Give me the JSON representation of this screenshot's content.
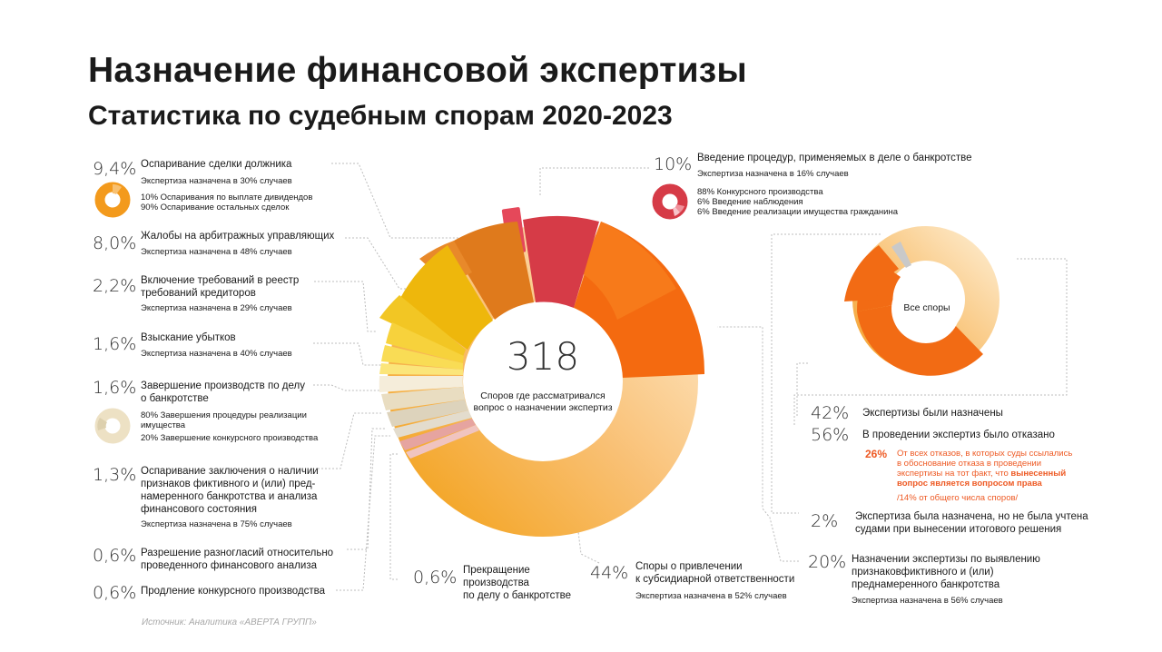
{
  "title": "Назначение финансовой экспертизы",
  "subtitle": "Статистика по судебным спорам 2020-2023",
  "source": "Источник: Аналитика «АВЕРТА ГРУПП»",
  "center": {
    "value": "318",
    "caption": "Споров где рассматривался вопрос о назначении экспертиз"
  },
  "chart_data": [
    {
      "type": "pie",
      "title": "Назначение финансовой экспертизы",
      "total": 318,
      "categories": [
        "Споры о привлечении к субсидиарной ответственности",
        "Назначении экспертизы по выявлению признаков фиктивного и (или) преднамеренного банкротства",
        "Введение процедур, применяемых в деле о банкротстве",
        "Оспаривание сделки должника",
        "Жалобы на арбитражных управляющих",
        "Включение требований в реестр требований кредиторов",
        "Взыскание убытков",
        "Завершение производств по делу о банкротстве",
        "Оспаривание заключения о наличии признаков фиктивного и (или) преднамеренного банкротства и анализа финансового состояния",
        "Разрешение разногласий относительно проведенного финансового анализа",
        "Продление конкурсного производства",
        "Прекращение производства по делу о банкротстве"
      ],
      "values": [
        44,
        20,
        10,
        9.4,
        8.0,
        2.2,
        1.6,
        1.6,
        1.3,
        0.6,
        0.6,
        0.6
      ],
      "appointed_percent": [
        52,
        56,
        16,
        30,
        48,
        29,
        40,
        null,
        75,
        null,
        null,
        null
      ]
    },
    {
      "type": "pie",
      "title": "Все споры",
      "categories": [
        "Экспертизы были назначены",
        "В проведении экспертиз было отказано",
        "Экспертиза была назначена, но не была учтена судами при вынесении итогового решения"
      ],
      "values": [
        42,
        56,
        2
      ]
    },
    {
      "type": "pie",
      "categories": [
        "Оспаривания по выплате дивидендов",
        "Оспаривание остальных сделок"
      ],
      "values": [
        10,
        90
      ]
    },
    {
      "type": "pie",
      "categories": [
        "Конкурсного производства",
        "Введение наблюдения",
        "Введение реализации имущества гражданина"
      ],
      "values": [
        88,
        6,
        6
      ]
    },
    {
      "type": "pie",
      "categories": [
        "Завершения процедуры реализации имущества",
        "Завершение конкурсного производства"
      ],
      "values": [
        80,
        20
      ]
    }
  ],
  "labels": {
    "s1": {
      "pct": "9,4%",
      "name": "Оспаривание сделки должника",
      "note": "Экспертиза назначена в 30% случаев",
      "sub1": "10% Оспаривания по выплате дивидендов",
      "sub2": "90%  Оспаривание остальных сделок"
    },
    "s2": {
      "pct": "8,0%",
      "name": "Жалобы на арбитражных управляющих",
      "note": "Экспертиза назначена в 48% случаев"
    },
    "s3": {
      "pct": "2,2%",
      "name1": "Включение требований в реестр",
      "name2": "требований кредиторов",
      "note": "Экспертиза назначена в 29% случаев"
    },
    "s4": {
      "pct": "1,6%",
      "name": "Взыскание убытков",
      "note": "Экспертиза назначена в 40% случаев"
    },
    "s5": {
      "pct": "1,6%",
      "name1": "Завершение производств по делу",
      "name2": "о банкротстве",
      "sub1": "80% Завершения процедуры реализации",
      "sub2": "имущества",
      "sub3": "20% Завершение конкурсного производства"
    },
    "s6": {
      "pct": "1,3%",
      "name1": "Оспаривание заключения о наличии",
      "name2": "признаков фиктивного и (или) пред-",
      "name3": "намеренного банкротства и анализа",
      "name4": "финансового состояния",
      "note": "Экспертиза назначена в 75% случаев"
    },
    "s7": {
      "pct": "0,6%",
      "name1": "Разрешение разногласий относительно",
      "name2": "проведенного финансового анализа"
    },
    "s8": {
      "pct": "0,6%",
      "name": "Продление конкурсного производства"
    },
    "s9": {
      "pct": "0,6%",
      "name1": "Прекращение",
      "name2": "производства",
      "name3": "по делу о банкротстве"
    },
    "s10": {
      "pct": "44%",
      "name1": "Споры о привлечении",
      "name2": "к субсидиарной ответственности",
      "note": "Экспертиза назначена в 52% случаев"
    },
    "s11": {
      "pct": "20%",
      "name1": "Назначении экспертизы по выявлению",
      "name2": "признаковфиктивного и (или)",
      "name3": "преднамеренного банкротства",
      "note": "Экспертиза назначена в 56% случаев"
    },
    "s12": {
      "pct": "10%",
      "name": "Введение процедур, применяемых в деле о банкротстве",
      "note": "Экспертиза назначена в 16% случаев",
      "sub1": "88% Конкурсного производства",
      "sub2": "6% Введение наблюдения",
      "sub3": "6% Введение реализации имущества гражданина"
    }
  },
  "right": {
    "center": "Все споры",
    "r1": {
      "pct": "42%",
      "text": "Экспертизы были назначены"
    },
    "r2": {
      "pct": "56%",
      "text": "В проведении экспертиз было отказано"
    },
    "r3": {
      "pct": "26%",
      "l1": "От всех отказов, в которых суды ссылались",
      "l2": "в обоснование отказа в проведении",
      "l3a": "экспертизы на тот факт, что ",
      "l3b": "вынесенный",
      "l4": "вопрос является вопросом права",
      "l5": "/14% от общего числа споров/"
    },
    "r4": {
      "pct": "2%",
      "l1": "Экспертиза была назначена, но не была учтена",
      "l2": "судами при вынесении итогового решения"
    }
  },
  "colors": {
    "red": "#d63b47",
    "orange": "#f46a10",
    "light_orange": "#f7a33a",
    "dark_orange": "#e07818",
    "yellow": "#f2c21e",
    "beige": "#e6dcc4",
    "pink": "#e8a6a2",
    "accent_text": "#ee5a24"
  }
}
